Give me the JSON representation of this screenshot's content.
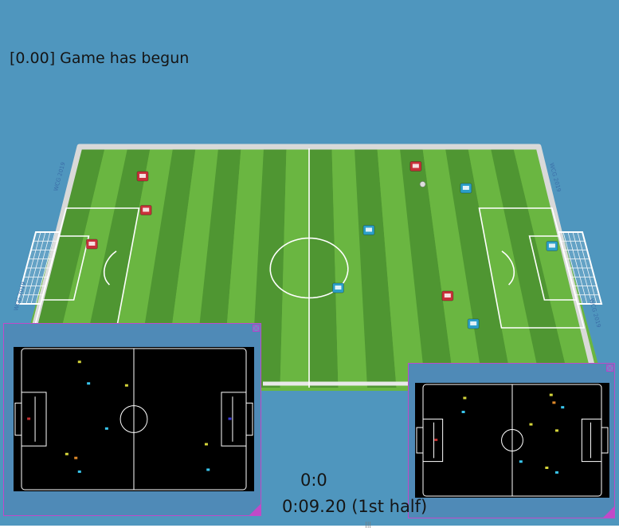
{
  "colors": {
    "sky": "#4f96be",
    "field_light": "#6ab641",
    "field_dark": "#4f9632",
    "wall": "#d9d9d9",
    "team_red": "#c8303a",
    "team_blue": "#2b9fc9",
    "minimap_bg": "#000000",
    "minimap_frame": "#4f8ab7",
    "minimap_border": "#c04ac8"
  },
  "status": {
    "message": "[0.00] Game has begun"
  },
  "scoreboard": {
    "score": "0:0",
    "clock": "0:09.20 (1st half)"
  },
  "banner": {
    "text": "WCG 2019"
  },
  "players": {
    "red": [
      {
        "label": "R1",
        "x": -3.55,
        "y": 2.3
      },
      {
        "label": "R2",
        "x": -3.35,
        "y": 1.45
      },
      {
        "label": "R3",
        "x": -4.3,
        "y": 0.6
      },
      {
        "label": "R4",
        "x": 2.3,
        "y": 2.55
      },
      {
        "label": "R5",
        "x": 2.6,
        "y": -0.7
      }
    ],
    "blue": [
      {
        "label": "B1",
        "x": 3.3,
        "y": 2.0
      },
      {
        "label": "B2",
        "x": 1.2,
        "y": 0.95
      },
      {
        "label": "B3",
        "x": 0.55,
        "y": -0.5
      },
      {
        "label": "B4",
        "x": 3.0,
        "y": -1.4
      },
      {
        "label": "B5",
        "x": 4.8,
        "y": 0.55
      }
    ]
  },
  "ball": {
    "x": 2.4,
    "y": 2.1
  },
  "minimaps": [
    {
      "name": "left",
      "markers": [
        {
          "color": "#d4d43a",
          "x": -1.5,
          "y": 1.45
        },
        {
          "color": "#39c6ee",
          "x": -1.25,
          "y": 0.9
        },
        {
          "color": "#d4d43a",
          "x": -0.2,
          "y": 0.85
        },
        {
          "color": "#39c6ee",
          "x": -0.75,
          "y": -0.25
        },
        {
          "color": "#d4d43a",
          "x": -1.85,
          "y": -0.9
        },
        {
          "color": "#e08a2a",
          "x": -1.6,
          "y": -1.0
        },
        {
          "color": "#39c6ee",
          "x": -1.5,
          "y": -1.35
        },
        {
          "color": "#d4d43a",
          "x": 2.0,
          "y": -0.65
        },
        {
          "color": "#39c6ee",
          "x": 2.05,
          "y": -1.3
        },
        {
          "color": "#c03030",
          "x": -2.9,
          "y": 0.0
        },
        {
          "color": "#3a3ad4",
          "x": 2.65,
          "y": 0.0
        }
      ]
    },
    {
      "name": "right",
      "markers": [
        {
          "color": "#d4d43a",
          "x": -1.65,
          "y": 1.35
        },
        {
          "color": "#39c6ee",
          "x": -1.7,
          "y": 0.9
        },
        {
          "color": "#d4d43a",
          "x": 1.35,
          "y": 1.45
        },
        {
          "color": "#e08a2a",
          "x": 1.45,
          "y": 1.2
        },
        {
          "color": "#39c6ee",
          "x": 1.75,
          "y": 1.05
        },
        {
          "color": "#d4d43a",
          "x": 0.65,
          "y": 0.5
        },
        {
          "color": "#d4d43a",
          "x": 1.55,
          "y": 0.3
        },
        {
          "color": "#39c6ee",
          "x": 0.3,
          "y": -0.7
        },
        {
          "color": "#d4d43a",
          "x": 1.2,
          "y": -0.9
        },
        {
          "color": "#39c6ee",
          "x": 1.55,
          "y": -1.05
        },
        {
          "color": "#c03030",
          "x": -2.65,
          "y": 0.0
        }
      ]
    }
  ]
}
